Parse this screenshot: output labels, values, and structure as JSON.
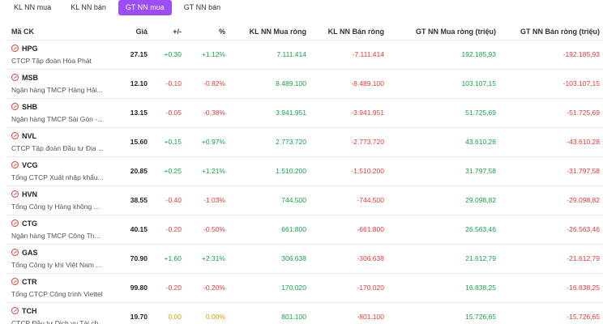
{
  "tabs": [
    {
      "label": "KL NN mua",
      "active": false
    },
    {
      "label": "KL NN bán",
      "active": false
    },
    {
      "label": "GT NN mua",
      "active": true
    },
    {
      "label": "GT NN bán",
      "active": false
    }
  ],
  "colors": {
    "accent": "#9b4dfa",
    "up": "#16a34a",
    "down": "#e53935",
    "ref": "#d4a20a"
  },
  "table": {
    "headers": [
      "Mã CK",
      "Giá",
      "+/-",
      "%",
      "KL NN Mua ròng",
      "KL NN Bán ròng",
      "GT NN Mua ròng (triệu)",
      "GT NN Bán ròng (triệu)"
    ],
    "rows": [
      {
        "symbol": "HPG",
        "name": "CTCP Tập đoàn Hòa Phát",
        "price": "27.15",
        "change": "+0.30",
        "pct": "+1.12%",
        "trend": "up",
        "kl_mua": "7.111.414",
        "kl_ban": "-7.111.414",
        "gt_mua": "192.185,93",
        "gt_ban": "-192.185,93"
      },
      {
        "symbol": "MSB",
        "name": "Ngân hàng TMCP Hàng Hải...",
        "price": "12.10",
        "change": "-0.10",
        "pct": "-0.82%",
        "trend": "down",
        "kl_mua": "8.489.100",
        "kl_ban": "-8.489.100",
        "gt_mua": "103.107,15",
        "gt_ban": "-103.107,15"
      },
      {
        "symbol": "SHB",
        "name": "Ngân hàng TMCP Sài Gòn -...",
        "price": "13.15",
        "change": "-0.05",
        "pct": "-0.38%",
        "trend": "down",
        "kl_mua": "3.941.951",
        "kl_ban": "-3.941.951",
        "gt_mua": "51.725,69",
        "gt_ban": "-51.725,69"
      },
      {
        "symbol": "NVL",
        "name": "CTCP Tập đoàn Đầu tư Địa ...",
        "price": "15.60",
        "change": "+0.15",
        "pct": "+0.97%",
        "trend": "up",
        "kl_mua": "2.773.720",
        "kl_ban": "-2.773.720",
        "gt_mua": "43.610,28",
        "gt_ban": "-43.610,28"
      },
      {
        "symbol": "VCG",
        "name": "Tổng CTCP Xuất nhập khẩu...",
        "price": "20.85",
        "change": "+0.25",
        "pct": "+1.21%",
        "trend": "up",
        "kl_mua": "1.510.200",
        "kl_ban": "-1.510.200",
        "gt_mua": "31.797,58",
        "gt_ban": "-31.797,58"
      },
      {
        "symbol": "HVN",
        "name": "Tổng Công ty Hàng không ...",
        "price": "38.55",
        "change": "-0.40",
        "pct": "-1.03%",
        "trend": "down",
        "kl_mua": "744.500",
        "kl_ban": "-744.500",
        "gt_mua": "29.098,82",
        "gt_ban": "-29.098,82"
      },
      {
        "symbol": "CTG",
        "name": "Ngân hàng TMCP Công Th...",
        "price": "40.15",
        "change": "-0.20",
        "pct": "-0.50%",
        "trend": "down",
        "kl_mua": "661.800",
        "kl_ban": "-661.800",
        "gt_mua": "26.563,46",
        "gt_ban": "-26.563,46"
      },
      {
        "symbol": "GAS",
        "name": "Tổng Công ty khí Việt Nam ...",
        "price": "70.90",
        "change": "+1.60",
        "pct": "+2.31%",
        "trend": "up",
        "kl_mua": "306.638",
        "kl_ban": "-306.638",
        "gt_mua": "21.612,79",
        "gt_ban": "-21.612,79"
      },
      {
        "symbol": "CTR",
        "name": "Tổng CTCP Công trình Viettel",
        "price": "99.80",
        "change": "-0.20",
        "pct": "-0.20%",
        "trend": "down",
        "kl_mua": "170.020",
        "kl_ban": "-170.020",
        "gt_mua": "16.838,25",
        "gt_ban": "-16.838,25"
      },
      {
        "symbol": "TCH",
        "name": "CTCP Đầu tư Dịch vụ Tài ch...",
        "price": "19.70",
        "change": "0.00",
        "pct": "0.00%",
        "trend": "ref",
        "kl_mua": "801.100",
        "kl_ban": "-801.100",
        "gt_mua": "15.726,65",
        "gt_ban": "-15.726,65"
      }
    ]
  }
}
